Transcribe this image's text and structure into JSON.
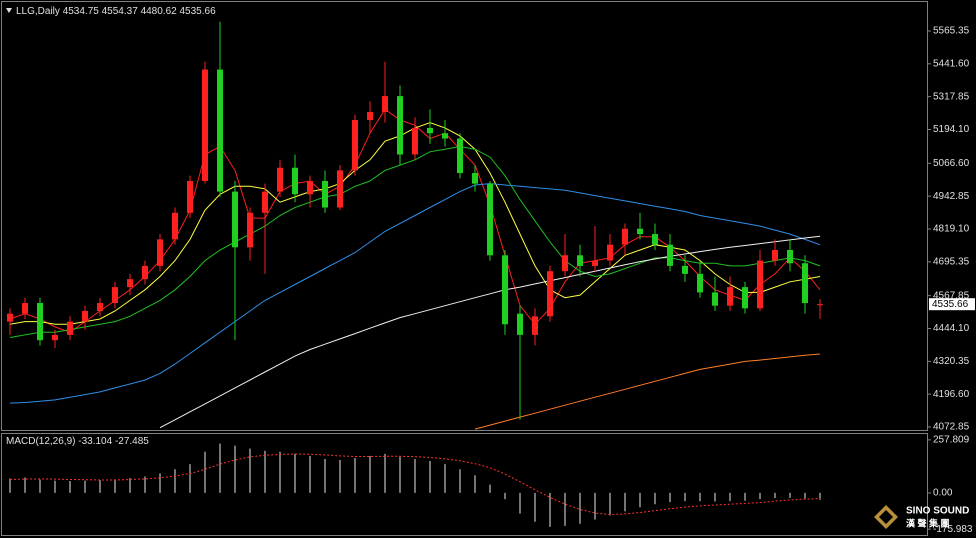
{
  "chart_data": [
    {
      "type": "candlestick",
      "title": "LLG,Daily",
      "up_color": "#ff2020",
      "down_color": "#20d020",
      "open": [
        4470,
        4500,
        4540,
        4400,
        4420,
        4470,
        4510,
        4540,
        4600,
        4630,
        4680,
        4780,
        4880,
        5000,
        5420,
        4960,
        4750,
        4880,
        4960,
        5050,
        4950,
        5000,
        4900,
        5040,
        5230,
        5260,
        5320,
        5100,
        5200,
        5180,
        5160,
        5030,
        4990,
        4720,
        4500,
        4420,
        4490,
        4660,
        4720,
        4680,
        4700,
        4760,
        4820,
        4800,
        4760,
        4680,
        4650,
        4580,
        4530,
        4600,
        4520,
        4700,
        4740,
        4690,
        4534.75
      ],
      "high": [
        4520,
        4560,
        4560,
        4440,
        4490,
        4530,
        4560,
        4620,
        4650,
        4700,
        4800,
        4900,
        5020,
        5450,
        5600,
        5000,
        4900,
        4990,
        5080,
        5100,
        5020,
        5040,
        5060,
        5250,
        5300,
        5450,
        5360,
        5240,
        5270,
        5230,
        5180,
        5060,
        5000,
        4740,
        4530,
        4520,
        4680,
        4800,
        4760,
        4830,
        4800,
        4840,
        4880,
        4840,
        4800,
        4720,
        4700,
        4640,
        4640,
        4620,
        4740,
        4780,
        4780,
        4720,
        4554.37
      ],
      "low": [
        4420,
        4480,
        4380,
        4370,
        4400,
        4440,
        4490,
        4520,
        4570,
        4610,
        4660,
        4760,
        4860,
        4990,
        4940,
        4400,
        4700,
        4650,
        4940,
        4920,
        4900,
        4880,
        4890,
        5020,
        5180,
        5220,
        5060,
        5080,
        5140,
        5130,
        5010,
        4960,
        4700,
        4420,
        4100,
        4380,
        4470,
        4640,
        4640,
        4660,
        4680,
        4720,
        4780,
        4740,
        4660,
        4620,
        4560,
        4510,
        4510,
        4500,
        4510,
        4680,
        4660,
        4500,
        4480.62
      ],
      "close": [
        4500,
        4540,
        4400,
        4420,
        4470,
        4510,
        4540,
        4600,
        4630,
        4680,
        4780,
        4880,
        5000,
        5420,
        4960,
        4750,
        4880,
        4960,
        5050,
        4950,
        5000,
        4900,
        5040,
        5230,
        5260,
        5320,
        5100,
        5200,
        5180,
        5160,
        5030,
        4990,
        4720,
        4460,
        4420,
        4490,
        4660,
        4720,
        4680,
        4700,
        4760,
        4820,
        4800,
        4760,
        4680,
        4650,
        4580,
        4530,
        4600,
        4520,
        4700,
        4740,
        4690,
        4540,
        4535.66
      ],
      "series": [
        {
          "color": "#ff2020",
          "values": [
            4480,
            4500,
            4480,
            4450,
            4430,
            4470,
            4510,
            4550,
            4590,
            4640,
            4700,
            4780,
            4890,
            5100,
            5130,
            5040,
            4860,
            4860,
            4960,
            4990,
            5000,
            4950,
            4980,
            5060,
            5180,
            5270,
            5230,
            5210,
            5160,
            5180,
            5120,
            5060,
            4910,
            4720,
            4530,
            4460,
            4520,
            4620,
            4690,
            4700,
            4710,
            4760,
            4790,
            4790,
            4750,
            4700,
            4640,
            4590,
            4570,
            4550,
            4610,
            4650,
            4710,
            4660,
            4590
          ]
        },
        {
          "color": "#ffff40",
          "values": [
            4460,
            4470,
            4470,
            4460,
            4460,
            4470,
            4480,
            4510,
            4550,
            4590,
            4640,
            4700,
            4780,
            4890,
            4950,
            4980,
            4980,
            4970,
            4920,
            4940,
            4960,
            4970,
            4990,
            5040,
            5080,
            5150,
            5170,
            5200,
            5220,
            5200,
            5170,
            5120,
            5030,
            4920,
            4800,
            4680,
            4590,
            4560,
            4570,
            4620,
            4670,
            4720,
            4740,
            4760,
            4750,
            4740,
            4700,
            4650,
            4610,
            4580,
            4580,
            4600,
            4620,
            4630,
            4640
          ]
        },
        {
          "color": "#20c020",
          "values": [
            4410,
            4420,
            4430,
            4430,
            4440,
            4450,
            4460,
            4470,
            4490,
            4520,
            4550,
            4590,
            4640,
            4700,
            4740,
            4770,
            4800,
            4830,
            4870,
            4900,
            4920,
            4940,
            4950,
            4980,
            5000,
            5040,
            5060,
            5080,
            5110,
            5120,
            5130,
            5120,
            5090,
            5020,
            4930,
            4850,
            4770,
            4700,
            4660,
            4640,
            4650,
            4670,
            4690,
            4710,
            4710,
            4700,
            4690,
            4690,
            4680,
            4680,
            4690,
            4700,
            4710,
            4700,
            4680
          ]
        },
        {
          "color": "#2f8fe8",
          "values": [
            4163,
            4165,
            4170,
            4175,
            4185,
            4195,
            4205,
            4220,
            4235,
            4250,
            4275,
            4310,
            4350,
            4390,
            4430,
            4470,
            4510,
            4550,
            4580,
            4610,
            4640,
            4670,
            4700,
            4730,
            4770,
            4810,
            4840,
            4870,
            4900,
            4930,
            4960,
            4985,
            4990,
            4985,
            4980,
            4975,
            4970,
            4965,
            4955,
            4945,
            4935,
            4925,
            4915,
            4905,
            4895,
            4885,
            4870,
            4860,
            4850,
            4840,
            4830,
            4815,
            4800,
            4780,
            4760
          ]
        },
        {
          "color": "#f0f0f0",
          "values": [
            null,
            null,
            null,
            null,
            null,
            null,
            null,
            null,
            null,
            null,
            4070,
            4100,
            4130,
            4160,
            4190,
            4220,
            4250,
            4280,
            4310,
            4340,
            4365,
            4385,
            4405,
            4425,
            4445,
            4465,
            4485,
            4500,
            4515,
            4530,
            4545,
            4560,
            4575,
            4590,
            4600,
            4612,
            4624,
            4636,
            4648,
            4660,
            4672,
            4684,
            4696,
            4706,
            4716,
            4725,
            4734,
            4742,
            4750,
            4757,
            4764,
            4771,
            4778,
            4785,
            4792
          ]
        },
        {
          "color": "#ff7f27",
          "values": [
            null,
            null,
            null,
            null,
            null,
            null,
            null,
            null,
            null,
            null,
            null,
            null,
            null,
            null,
            null,
            null,
            null,
            null,
            null,
            null,
            null,
            null,
            null,
            null,
            null,
            null,
            null,
            null,
            null,
            null,
            null,
            4065,
            4080,
            4095,
            4110,
            4125,
            4140,
            4155,
            4170,
            4185,
            4200,
            4215,
            4230,
            4245,
            4260,
            4275,
            4290,
            4300,
            4310,
            4320,
            4325,
            4331,
            4337,
            4343,
            4348
          ]
        }
      ],
      "ylim": [
        4061.5,
        5674.6
      ],
      "yticks": [
        5565.35,
        {
          "value": 5441.6,
          "label": "5441.60"
        },
        5317.85,
        {
          "value": 5194.1,
          "label": "5194.10"
        },
        {
          "value": 5066.6,
          "label": "5066.60"
        },
        4942.85,
        {
          "value": 4819.1,
          "label": "4819.10"
        },
        4695.35,
        4567.85,
        {
          "value": 4444.1,
          "label": "4444.10"
        },
        4320.35,
        {
          "value": 4196.6,
          "label": "4196.60"
        },
        4072.85
      ]
    },
    {
      "type": "macd",
      "title": "MACD(12,26,9)",
      "series": [
        {
          "color": "#e8e8e8",
          "values": [
            70,
            75,
            65,
            60,
            58,
            60,
            62,
            66,
            72,
            80,
            95,
            115,
            140,
            200,
            240,
            230,
            215,
            205,
            200,
            190,
            180,
            165,
            160,
            170,
            180,
            190,
            175,
            165,
            155,
            140,
            115,
            85,
            40,
            -30,
            -100,
            -140,
            -165,
            -160,
            -150,
            -130,
            -110,
            -90,
            -70,
            -55,
            -45,
            -40,
            -40,
            -42,
            -40,
            -38,
            -30,
            -25,
            -24,
            -28,
            -33.104
          ]
        },
        {
          "color": "#ff3030",
          "values": [
            65,
            67,
            68,
            67,
            65,
            64,
            63,
            63,
            65,
            68,
            73,
            82,
            94,
            115,
            140,
            160,
            175,
            183,
            187,
            189,
            188,
            185,
            180,
            177,
            177,
            178,
            178,
            176,
            172,
            166,
            156,
            142,
            122,
            92,
            54,
            15,
            -22,
            -55,
            -80,
            -98,
            -105,
            -102,
            -95,
            -86,
            -77,
            -69,
            -63,
            -59,
            -55,
            -51,
            -47,
            -40,
            -34,
            -30,
            -27.485
          ]
        }
      ],
      "ylim": [
        -204.6,
        286.4
      ],
      "yticks": [
        257.809,
        {
          "value": 0,
          "label": "0.00"
        },
        -175.983
      ]
    }
  ],
  "watermark": {
    "brand": "SINO SOUND",
    "chinese": "漢 聲 集 團"
  }
}
